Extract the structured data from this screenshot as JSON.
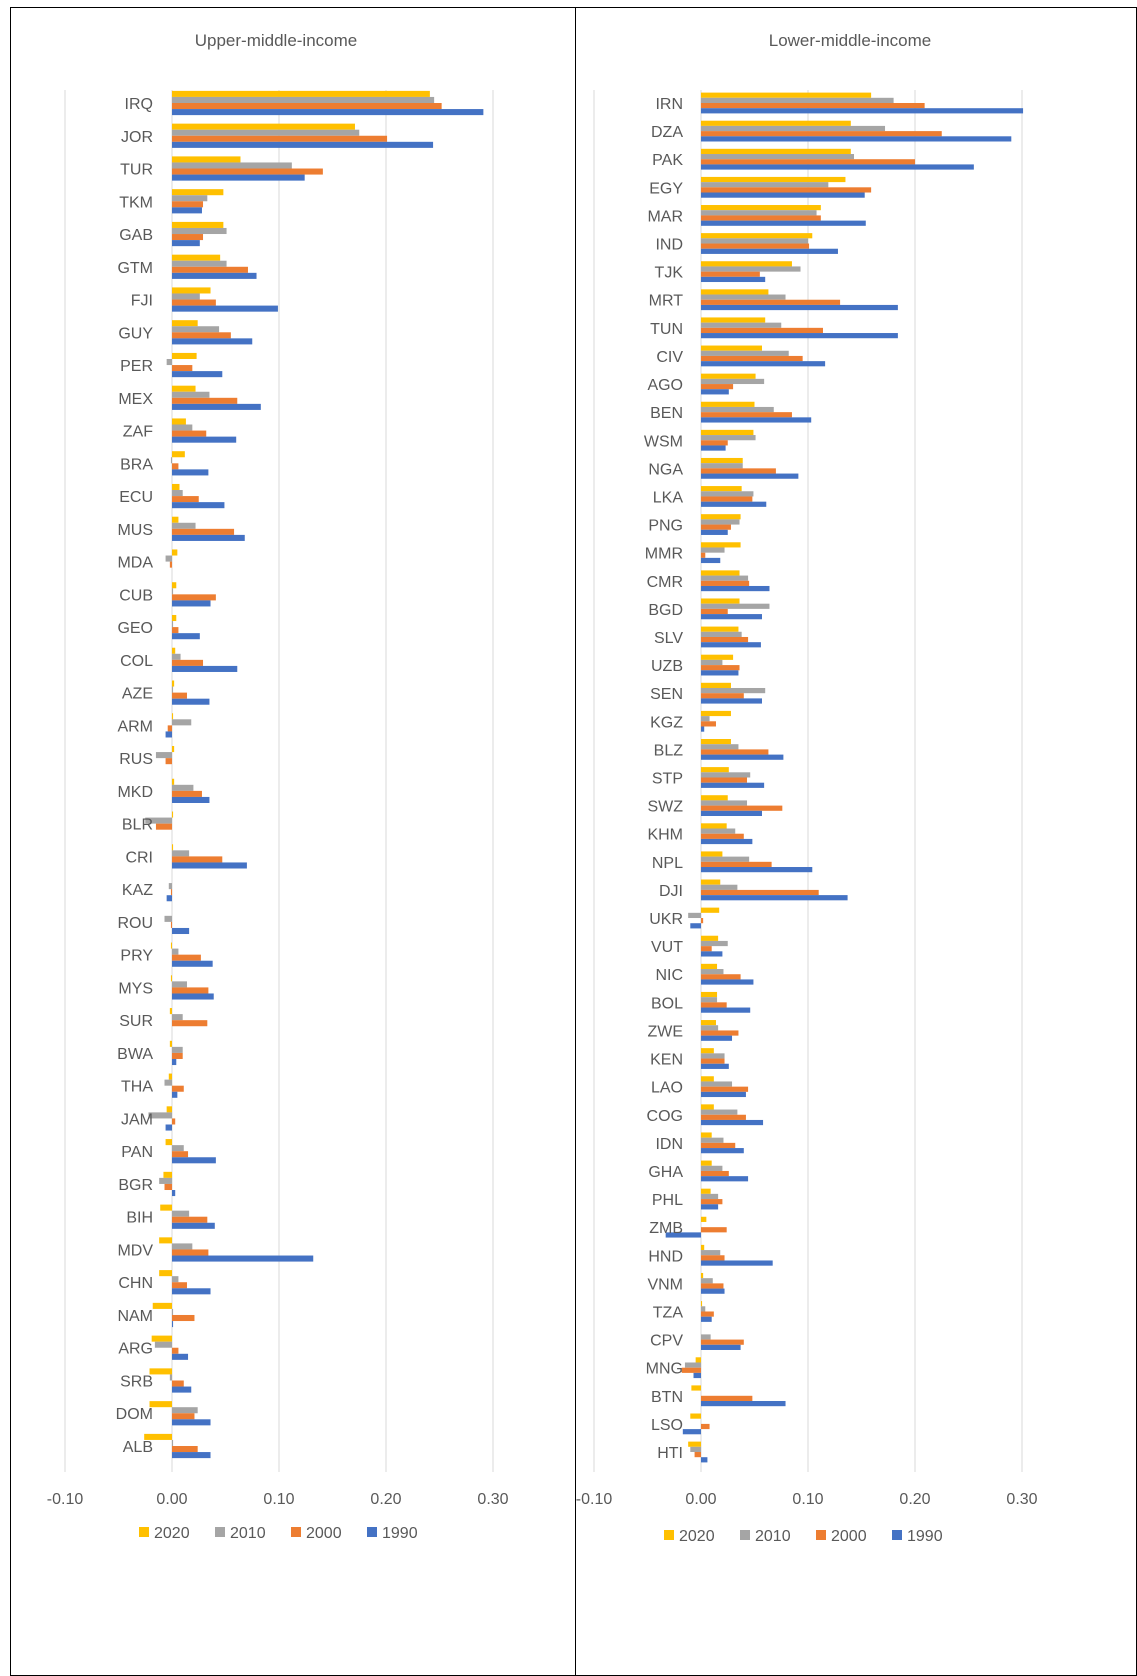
{
  "colors": {
    "2020": "#FFC000",
    "2010": "#A5A5A5",
    "2000": "#ED7D31",
    "1990": "#4472C4",
    "grid": "#D9D9D9",
    "text": "#595959"
  },
  "chart_data": [
    {
      "type": "bar",
      "orientation": "horizontal",
      "title": "Upper-middle-income",
      "xlim": [
        -0.1,
        0.3
      ],
      "xticks": [
        "-0.10",
        "0.00",
        "0.10",
        "0.20",
        "0.30"
      ],
      "grid": true,
      "legend": {
        "placement": "bottom",
        "entries": [
          "2020",
          "2010",
          "2000",
          "1990"
        ]
      },
      "categories": [
        "IRQ",
        "JOR",
        "TUR",
        "TKM",
        "GAB",
        "GTM",
        "FJI",
        "GUY",
        "PER",
        "MEX",
        "ZAF",
        "BRA",
        "ECU",
        "MUS",
        "MDA",
        "CUB",
        "GEO",
        "COL",
        "AZE",
        "ARM",
        "RUS",
        "MKD",
        "BLR",
        "CRI",
        "KAZ",
        "ROU",
        "PRY",
        "MYS",
        "SUR",
        "BWA",
        "THA",
        "JAM",
        "PAN",
        "BGR",
        "BIH",
        "MDV",
        "CHN",
        "NAM",
        "ARG",
        "SRB",
        "DOM",
        "ALB"
      ],
      "series": [
        {
          "name": "2020",
          "values": [
            0.241,
            0.171,
            0.064,
            0.048,
            0.048,
            0.045,
            0.036,
            0.024,
            0.023,
            0.022,
            0.013,
            0.012,
            0.007,
            0.006,
            0.005,
            0.004,
            0.004,
            0.003,
            0.002,
            0.001,
            0.002,
            0.002,
            0.001,
            0.001,
            0.0,
            0.0,
            -0.001,
            -0.001,
            -0.002,
            -0.002,
            -0.003,
            -0.005,
            -0.006,
            -0.008,
            -0.011,
            -0.012,
            -0.012,
            -0.018,
            -0.019,
            -0.021,
            -0.021,
            -0.026
          ]
        },
        {
          "name": "2010",
          "values": [
            0.245,
            0.175,
            0.112,
            0.033,
            0.051,
            0.051,
            0.026,
            0.044,
            -0.005,
            0.035,
            0.019,
            -0.001,
            0.01,
            0.022,
            -0.006,
            0.001,
            0.001,
            0.008,
            0.001,
            0.018,
            -0.015,
            0.02,
            -0.025,
            0.016,
            -0.003,
            -0.007,
            0.006,
            0.014,
            0.01,
            0.01,
            -0.007,
            -0.022,
            0.011,
            -0.012,
            0.016,
            0.019,
            0.006,
            0.001,
            -0.016,
            -0.002,
            0.024,
            0.001
          ]
        },
        {
          "name": "2000",
          "values": [
            0.252,
            0.201,
            0.141,
            0.029,
            0.029,
            0.071,
            0.041,
            0.055,
            0.019,
            0.061,
            0.032,
            0.006,
            0.025,
            0.058,
            -0.002,
            0.041,
            0.006,
            0.029,
            0.014,
            -0.004,
            -0.006,
            0.028,
            -0.015,
            0.047,
            -0.001,
            -0.001,
            0.027,
            0.034,
            0.033,
            0.01,
            0.011,
            0.003,
            0.015,
            -0.007,
            0.033,
            0.034,
            0.014,
            0.021,
            0.006,
            0.011,
            0.021,
            0.024
          ]
        },
        {
          "name": "1990",
          "values": [
            0.291,
            0.244,
            0.124,
            0.028,
            0.026,
            0.079,
            0.099,
            0.075,
            0.047,
            0.083,
            0.06,
            0.034,
            0.049,
            0.068,
            0.0,
            0.036,
            0.026,
            0.061,
            0.035,
            -0.006,
            0.0,
            0.035,
            0.0,
            0.07,
            -0.005,
            0.016,
            0.038,
            0.039,
            0.0,
            0.004,
            0.005,
            -0.006,
            0.041,
            0.003,
            0.04,
            0.132,
            0.036,
            0.001,
            0.015,
            0.018,
            0.036,
            0.036
          ]
        }
      ]
    },
    {
      "type": "bar",
      "orientation": "horizontal",
      "title": "Lower-middle-income",
      "xlim": [
        -0.1,
        0.3
      ],
      "xticks": [
        "-0.10",
        "0.00",
        "0.10",
        "0.20",
        "0.30"
      ],
      "grid": true,
      "legend": {
        "placement": "bottom",
        "entries": [
          "2020",
          "2010",
          "2000",
          "1990"
        ]
      },
      "categories": [
        "IRN",
        "DZA",
        "PAK",
        "EGY",
        "MAR",
        "IND",
        "TJK",
        "MRT",
        "TUN",
        "CIV",
        "AGO",
        "BEN",
        "WSM",
        "NGA",
        "LKA",
        "PNG",
        "MMR",
        "CMR",
        "BGD",
        "SLV",
        "UZB",
        "SEN",
        "KGZ",
        "BLZ",
        "STP",
        "SWZ",
        "KHM",
        "NPL",
        "DJI",
        "UKR",
        "VUT",
        "NIC",
        "BOL",
        "ZWE",
        "KEN",
        "LAO",
        "COG",
        "IDN",
        "GHA",
        "PHL",
        "ZMB",
        "HND",
        "VNM",
        "TZA",
        "CPV",
        "MNG",
        "BTN",
        "LSO",
        "HTI"
      ],
      "series": [
        {
          "name": "2020",
          "values": [
            0.159,
            0.14,
            0.14,
            0.135,
            0.112,
            0.104,
            0.085,
            0.063,
            0.06,
            0.057,
            0.051,
            0.05,
            0.049,
            0.039,
            0.038,
            0.037,
            0.037,
            0.036,
            0.036,
            0.035,
            0.03,
            0.028,
            0.028,
            0.028,
            0.026,
            0.025,
            0.024,
            0.02,
            0.018,
            0.017,
            0.016,
            0.015,
            0.015,
            0.014,
            0.012,
            0.012,
            0.012,
            0.01,
            0.01,
            0.009,
            0.005,
            0.003,
            0.002,
            0.001,
            0.0,
            -0.005,
            -0.009,
            -0.01,
            -0.012
          ]
        },
        {
          "name": "2010",
          "values": [
            0.18,
            0.172,
            0.143,
            0.119,
            0.108,
            0.1,
            0.093,
            0.079,
            0.075,
            0.082,
            0.059,
            0.068,
            0.051,
            0.039,
            0.049,
            0.036,
            0.022,
            0.044,
            0.064,
            0.038,
            0.02,
            0.06,
            0.008,
            0.035,
            0.046,
            0.043,
            0.032,
            0.045,
            0.034,
            -0.012,
            0.025,
            0.021,
            0.015,
            0.016,
            0.022,
            0.029,
            0.034,
            0.021,
            0.02,
            0.016,
            0.0,
            0.018,
            0.011,
            0.004,
            0.009,
            -0.015,
            0.0,
            0.0,
            -0.01
          ]
        },
        {
          "name": "2000",
          "values": [
            0.209,
            0.225,
            0.2,
            0.159,
            0.112,
            0.101,
            0.055,
            0.13,
            0.114,
            0.095,
            0.03,
            0.085,
            0.025,
            0.07,
            0.048,
            0.028,
            0.004,
            0.045,
            0.025,
            0.044,
            0.036,
            0.04,
            0.014,
            0.063,
            0.043,
            0.076,
            0.04,
            0.066,
            0.11,
            0.002,
            0.01,
            0.037,
            0.024,
            0.035,
            0.022,
            0.044,
            0.042,
            0.032,
            0.026,
            0.02,
            0.024,
            0.022,
            0.021,
            0.012,
            0.04,
            -0.018,
            0.048,
            0.008,
            -0.006
          ]
        },
        {
          "name": "1990",
          "values": [
            0.301,
            0.29,
            0.255,
            0.153,
            0.154,
            0.128,
            0.06,
            0.184,
            0.184,
            0.116,
            0.026,
            0.103,
            0.023,
            0.091,
            0.061,
            0.025,
            0.018,
            0.064,
            0.057,
            0.056,
            0.035,
            0.057,
            0.003,
            0.077,
            0.059,
            0.057,
            0.048,
            0.104,
            0.137,
            -0.01,
            0.02,
            0.049,
            0.046,
            0.029,
            0.026,
            0.042,
            0.058,
            0.04,
            0.044,
            0.016,
            -0.033,
            0.067,
            0.022,
            0.01,
            0.037,
            -0.007,
            0.079,
            -0.017,
            0.006
          ]
        }
      ]
    }
  ]
}
